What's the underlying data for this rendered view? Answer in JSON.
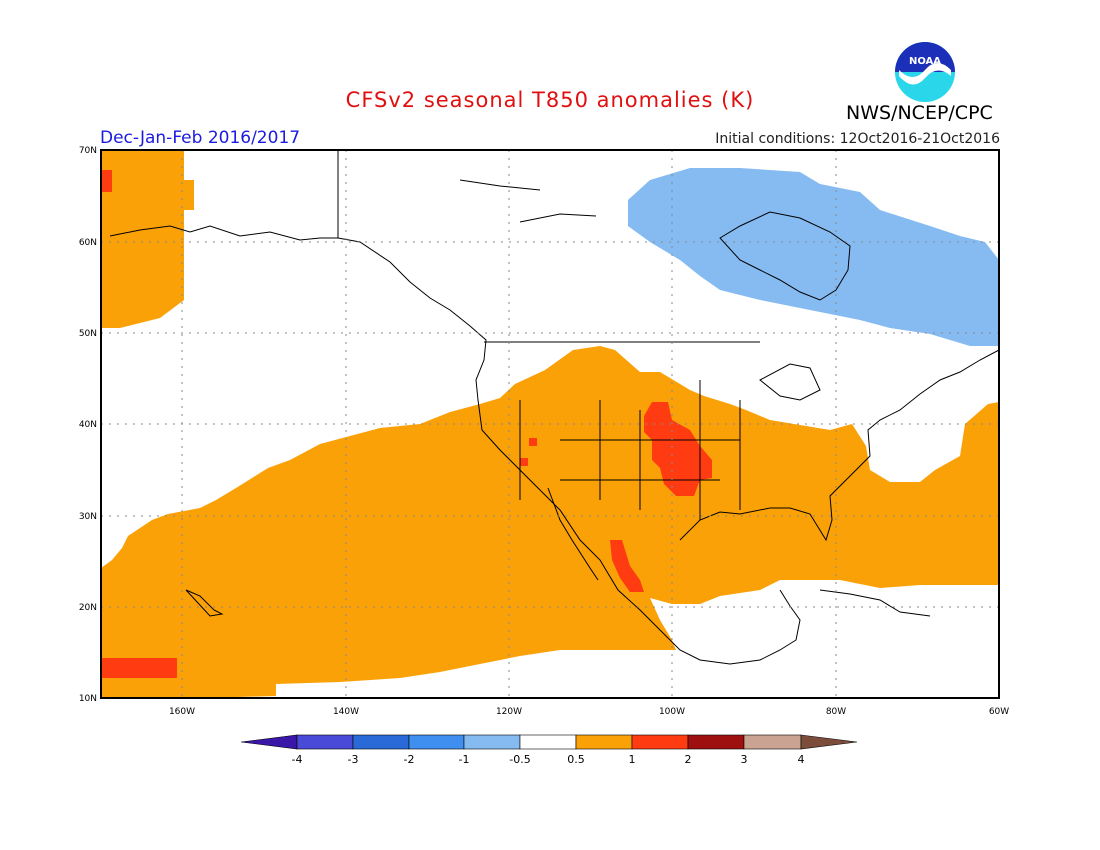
{
  "header": {
    "title": "CFSv2 seasonal T850 anomalies (K)",
    "period": "Dec-Jan-Feb 2016/2017",
    "initial_conditions": "Initial conditions: 12Oct2016-21Oct2016",
    "agency": "NWS/NCEP/CPC",
    "logo_text": "NOAA"
  },
  "map": {
    "lat_labels": [
      "70N",
      "60N",
      "50N",
      "40N",
      "30N",
      "20N",
      "10N"
    ],
    "lon_labels": [
      "160W",
      "140W",
      "120W",
      "100W",
      "80W",
      "60W"
    ]
  },
  "legend": {
    "colors": [
      "#3a17a8",
      "#4a4ad8",
      "#2a6ad8",
      "#3f8ff0",
      "#86bbf2",
      "#ffffff",
      "#fba108",
      "#ff3b12",
      "#9e1010",
      "#caa392",
      "#7d4d3c"
    ],
    "labels": [
      "-4",
      "-3",
      "-2",
      "-1",
      "-0.5",
      "0.5",
      "1",
      "2",
      "3",
      "4"
    ]
  }
}
